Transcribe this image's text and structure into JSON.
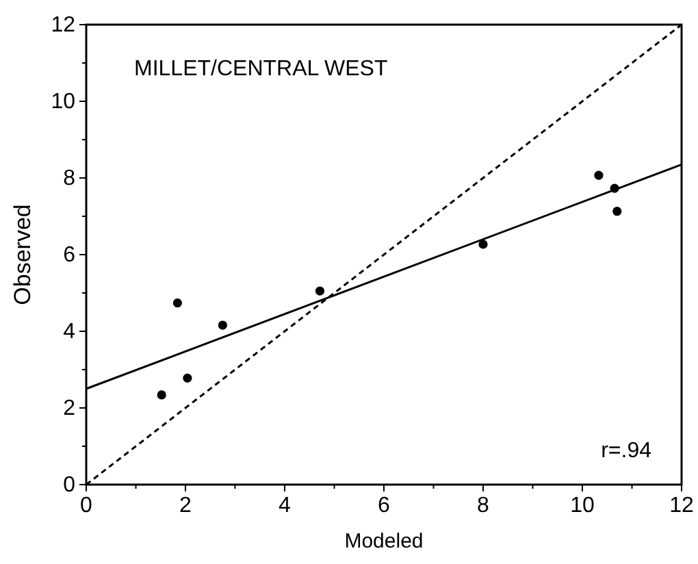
{
  "chart_data": {
    "type": "scatter",
    "xlabel": "Modeled",
    "ylabel": "Observed",
    "annotations": [
      "MILLET/CENTRAL WEST",
      "r=.94"
    ],
    "xlim": [
      0,
      12
    ],
    "ylim": [
      0,
      12
    ],
    "xticks": [
      0,
      {
        "value": 1,
        "label": null
      },
      2,
      {
        "value": 3,
        "label": null
      },
      4,
      {
        "value": 5,
        "label": null
      },
      6,
      {
        "value": 7,
        "label": null
      },
      8,
      {
        "value": 9,
        "label": null
      },
      10,
      {
        "value": 11,
        "label": null
      },
      12
    ],
    "yticks": [
      0,
      {
        "value": 1,
        "label": null
      },
      2,
      {
        "value": 3,
        "label": null
      },
      4,
      {
        "value": 5,
        "label": null
      },
      6,
      {
        "value": 7,
        "label": null
      },
      8,
      {
        "value": 9,
        "label": null
      },
      10,
      {
        "value": 11,
        "label": null
      },
      12
    ],
    "grid": false,
    "series": [
      {
        "color": "#000000",
        "marker": "circle",
        "x": [
          1.52,
          1.84,
          2.04,
          2.75,
          4.71,
          8.0,
          10.33,
          10.65,
          10.7
        ],
        "values": [
          2.34,
          4.74,
          2.78,
          4.16,
          5.05,
          6.27,
          8.07,
          7.73,
          7.13
        ]
      },
      {
        "type": "line",
        "color": "#000000",
        "line_style": "solid",
        "x": [
          0,
          12
        ],
        "values": [
          2.5,
          8.35
        ]
      },
      {
        "type": "line",
        "color": "#000000",
        "line_style": "dashed",
        "x": [
          0,
          12
        ],
        "values": [
          0,
          12
        ]
      }
    ]
  }
}
